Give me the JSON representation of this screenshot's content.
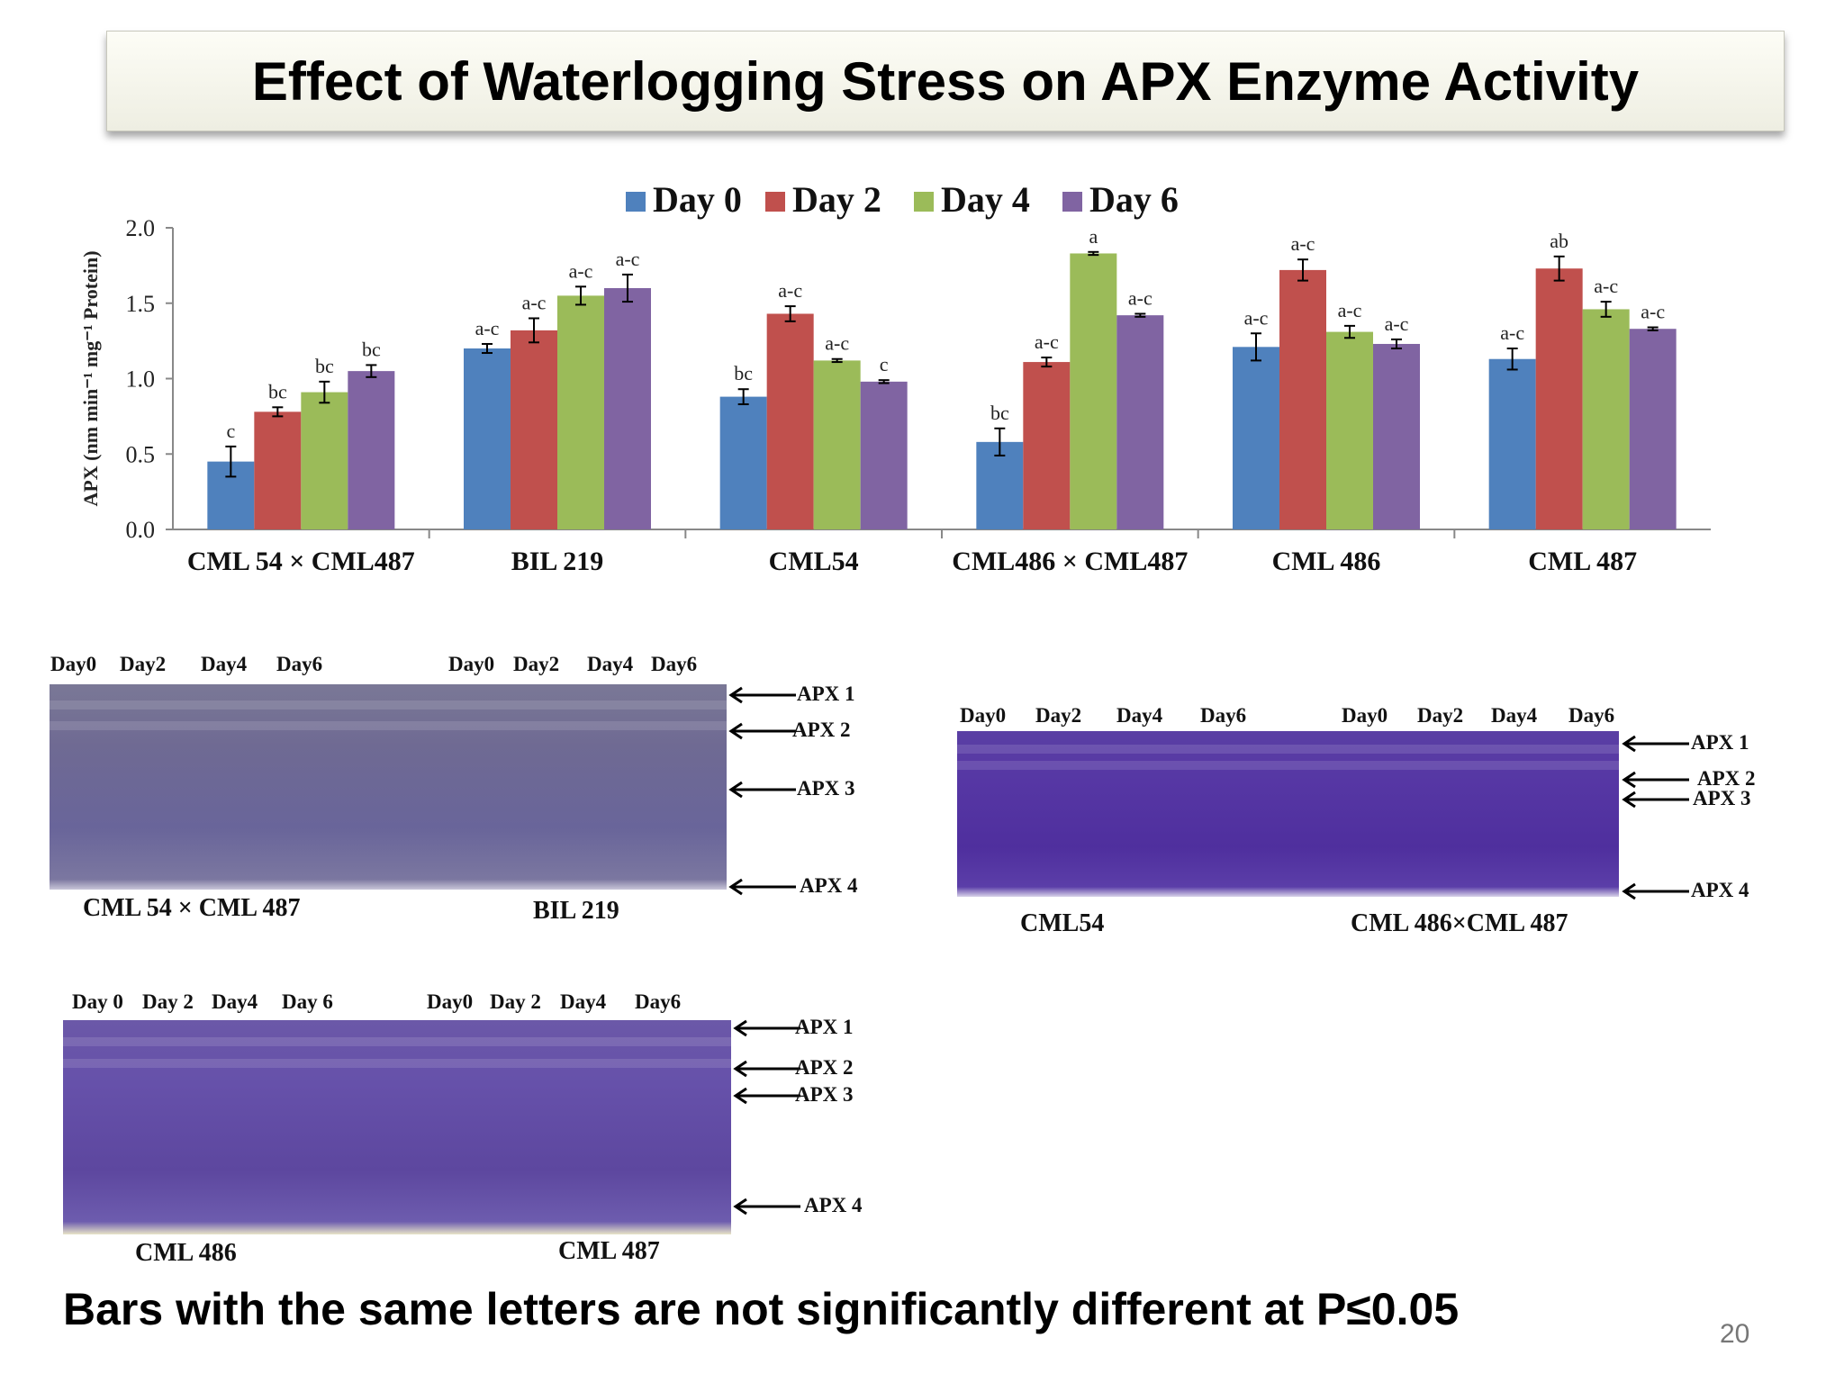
{
  "slide": {
    "title": "Effect of Waterlogging Stress on APX Enzyme Activity",
    "footnote": "Bars with the same letters are not significantly different at P≤0.05",
    "page_number": "20"
  },
  "chart_data": {
    "type": "bar",
    "ylabel": "APX (nm min⁻¹ mg⁻¹ Protein)",
    "ylim": [
      0,
      2.0
    ],
    "yticks": [
      "0.0",
      "0.5",
      "1.0",
      "1.5",
      "2.0"
    ],
    "ytick_values": [
      0,
      0.5,
      1.0,
      1.5,
      2.0
    ],
    "categories": [
      "CML 54 × CML487",
      "BIL 219",
      "CML54",
      "CML486 × CML487",
      "CML 486",
      "CML 487"
    ],
    "legend_position": "top",
    "series": [
      {
        "name": "Day 0",
        "color": "#4f81bd",
        "values": [
          0.45,
          1.2,
          0.88,
          0.58,
          1.21,
          1.13
        ],
        "errors": [
          0.1,
          0.03,
          0.05,
          0.09,
          0.09,
          0.07
        ],
        "letters": [
          "c",
          "a-c",
          "bc",
          "bc",
          "a-c",
          "a-c"
        ]
      },
      {
        "name": "Day 2",
        "color": "#c0504d",
        "values": [
          0.78,
          1.32,
          1.43,
          1.11,
          1.72,
          1.73
        ],
        "errors": [
          0.03,
          0.08,
          0.05,
          0.03,
          0.07,
          0.08
        ],
        "letters": [
          "bc",
          "a-c",
          "a-c",
          "a-c",
          "a-c",
          "ab"
        ]
      },
      {
        "name": "Day 4",
        "color": "#9bbb59",
        "values": [
          0.91,
          1.55,
          1.12,
          1.83,
          1.31,
          1.46
        ],
        "errors": [
          0.07,
          0.06,
          0.01,
          0.01,
          0.04,
          0.05
        ],
        "letters": [
          "bc",
          "a-c",
          "a-c",
          "a",
          "a-c",
          "a-c"
        ]
      },
      {
        "name": "Day 6",
        "color": "#8064a2",
        "values": [
          1.05,
          1.6,
          0.98,
          1.42,
          1.23,
          1.33
        ],
        "errors": [
          0.04,
          0.09,
          0.01,
          0.01,
          0.03,
          0.01
        ],
        "letters": [
          "bc",
          "a-c",
          "c",
          "a-c",
          "a-c",
          "a-c"
        ]
      }
    ]
  },
  "gels": [
    {
      "lanes_left": [
        "Day0",
        "Day2",
        "Day4",
        "Day6"
      ],
      "lanes_right": [
        "Day0",
        "Day2",
        "Day4",
        "Day6"
      ],
      "caption_left": "CML 54 × CML 487",
      "caption_right": "BIL 219",
      "bands": [
        "APX 1",
        "APX 2",
        "APX 3",
        "APX 4"
      ]
    },
    {
      "lanes_left": [
        "Day0",
        "Day2",
        "Day4",
        "Day6"
      ],
      "lanes_right": [
        "Day0",
        "Day2",
        "Day4",
        "Day6"
      ],
      "caption_left": "CML54",
      "caption_right": "CML 486×CML 487",
      "bands": [
        "APX 1",
        "APX 2",
        "APX 3",
        "APX 4"
      ]
    },
    {
      "lanes_left": [
        "Day 0",
        "Day 2",
        "Day4",
        "Day 6"
      ],
      "lanes_right": [
        "Day0",
        "Day 2",
        "Day4",
        "Day6"
      ],
      "caption_left": "CML 486",
      "caption_right": "CML 487",
      "bands": [
        "APX 1",
        "APX 2",
        "APX 3",
        "APX 4"
      ]
    }
  ]
}
